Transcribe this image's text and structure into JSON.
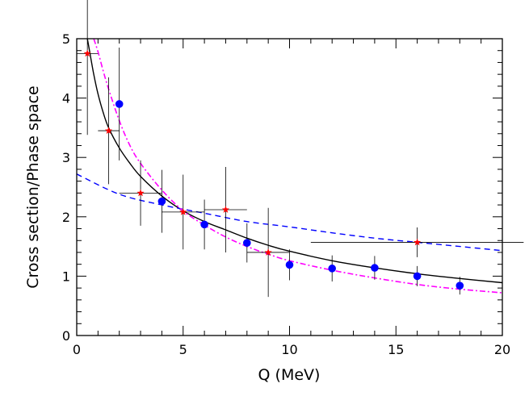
{
  "chart_data": {
    "type": "scatter",
    "xlabel": "Q (MeV)",
    "ylabel": "Cross section/Phase space",
    "xlim": [
      0,
      20
    ],
    "ylim": [
      0,
      5
    ],
    "xticks": [
      0,
      5,
      10,
      15,
      20
    ],
    "yticks": [
      0,
      1,
      2,
      3,
      4,
      5
    ],
    "grid": false,
    "colors": {
      "axes": "#000000",
      "stars": "#ff0000",
      "dots": "#0000ff",
      "solid": "#000000",
      "dashed": "#0000ff",
      "dashdot": "#ff00ff",
      "errorbars": "#000000"
    },
    "series": [
      {
        "marker": "star",
        "points": [
          {
            "x": 0.5,
            "y": 4.75,
            "xerr": 0.5,
            "yerr": 1.37
          },
          {
            "x": 1.5,
            "y": 3.45,
            "xerr": 0.5,
            "yerr": 0.9
          },
          {
            "x": 3.0,
            "y": 2.4,
            "xerr": 1.0,
            "yerr": 0.55
          },
          {
            "x": 5.0,
            "y": 2.08,
            "xerr": 1.0,
            "yerr": 0.63
          },
          {
            "x": 7.0,
            "y": 2.12,
            "xerr": 1.0,
            "yerr": 0.72
          },
          {
            "x": 9.0,
            "y": 1.4,
            "xerr": 1.0,
            "yerr": 0.75
          },
          {
            "x": 16.0,
            "y": 1.57,
            "xerr": 5.0,
            "yerr": 0.25
          }
        ]
      },
      {
        "marker": "dot",
        "points": [
          {
            "x": 2.0,
            "y": 3.9,
            "xerr": 0,
            "yerr": 0.95
          },
          {
            "x": 4.0,
            "y": 2.26,
            "xerr": 0,
            "yerr": 0.53
          },
          {
            "x": 6.0,
            "y": 1.87,
            "xerr": 0,
            "yerr": 0.42
          },
          {
            "x": 8.0,
            "y": 1.56,
            "xerr": 0,
            "yerr": 0.33
          },
          {
            "x": 10.0,
            "y": 1.19,
            "xerr": 0,
            "yerr": 0.26
          },
          {
            "x": 12.0,
            "y": 1.13,
            "xerr": 0,
            "yerr": 0.22
          },
          {
            "x": 14.0,
            "y": 1.14,
            "xerr": 0,
            "yerr": 0.2
          },
          {
            "x": 16.0,
            "y": 1.0,
            "xerr": 0,
            "yerr": 0.17
          },
          {
            "x": 18.0,
            "y": 0.84,
            "xerr": 0,
            "yerr": 0.15
          }
        ]
      }
    ],
    "curves": [
      {
        "style": "solid",
        "x": [
          0.5,
          0.6,
          0.8,
          1.0,
          1.25,
          1.5,
          2.0,
          2.5,
          3.0,
          4.0,
          5.0,
          6.0,
          7.0,
          8.0,
          9.0,
          10.0,
          12.0,
          14.0,
          16.0,
          18.0,
          20.0
        ],
        "y": [
          5.0,
          4.8,
          4.4,
          4.07,
          3.75,
          3.5,
          3.16,
          2.9,
          2.68,
          2.35,
          2.1,
          1.92,
          1.78,
          1.64,
          1.52,
          1.42,
          1.26,
          1.14,
          1.04,
          0.96,
          0.89
        ]
      },
      {
        "style": "dashed",
        "x": [
          0,
          2,
          4,
          6,
          8,
          10,
          12,
          14,
          16,
          18,
          20
        ],
        "y": [
          2.72,
          2.38,
          2.2,
          2.06,
          1.92,
          1.83,
          1.73,
          1.64,
          1.57,
          1.5,
          1.43
        ]
      },
      {
        "style": "dashdot",
        "x": [
          0.8,
          1.0,
          1.25,
          1.5,
          2.0,
          2.5,
          3.0,
          4.0,
          5.0,
          6.0,
          7.0,
          8.0,
          9.0,
          10.0,
          12.0,
          14.0,
          16.0,
          18.0,
          20.0
        ],
        "y": [
          5.0,
          4.78,
          4.45,
          4.15,
          3.62,
          3.2,
          2.9,
          2.45,
          2.1,
          1.86,
          1.66,
          1.5,
          1.37,
          1.26,
          1.1,
          0.97,
          0.86,
          0.78,
          0.72
        ]
      }
    ]
  }
}
